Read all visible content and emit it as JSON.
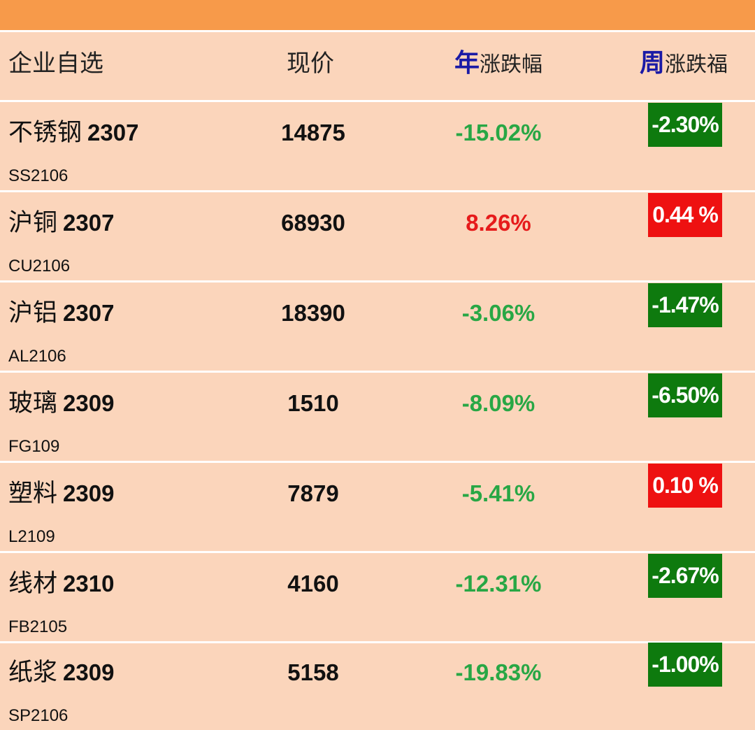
{
  "header": {
    "name_label": "企业自选",
    "price_label": "现价",
    "year_accent": "年",
    "year_suffix": "涨跌幅",
    "week_accent": "周",
    "week_suffix": "涨跌福"
  },
  "colors": {
    "background": "#fbd5bb",
    "top_bar": "#f79a4a",
    "accent_blue": "#1a1aa6",
    "gain_red": "#e61b1b",
    "loss_green": "#28a745",
    "loss_badge_green": "#0e7a0e",
    "gain_badge_red": "#ee1111"
  },
  "rows": [
    {
      "name": "不锈钢",
      "contract": "2307",
      "code": "SS2106",
      "price": "14875",
      "year_change": "-15.02%",
      "year_dir": "down",
      "week_change": "-2.30%",
      "week_dir": "down"
    },
    {
      "name": "沪铜",
      "contract": "2307",
      "code": "CU2106",
      "price": "68930",
      "year_change": "8.26%",
      "year_dir": "up",
      "week_change": "0.44 %",
      "week_dir": "up"
    },
    {
      "name": "沪铝",
      "contract": "2307",
      "code": "AL2106",
      "price": "18390",
      "year_change": "-3.06%",
      "year_dir": "down",
      "week_change": "-1.47%",
      "week_dir": "down"
    },
    {
      "name": "玻璃",
      "contract": "2309",
      "code": "FG109",
      "price": "1510",
      "year_change": "-8.09%",
      "year_dir": "down",
      "week_change": "-6.50%",
      "week_dir": "down"
    },
    {
      "name": "塑料",
      "contract": "2309",
      "code": "L2109",
      "price": "7879",
      "year_change": "-5.41%",
      "year_dir": "down",
      "week_change": "0.10 %",
      "week_dir": "up"
    },
    {
      "name": "线材",
      "contract": "2310",
      "code": "FB2105",
      "price": "4160",
      "year_change": "-12.31%",
      "year_dir": "down",
      "week_change": "-2.67%",
      "week_dir": "down"
    },
    {
      "name": "纸浆",
      "contract": "2309",
      "code": "SP2106",
      "price": "5158",
      "year_change": "-19.83%",
      "year_dir": "down",
      "week_change": "-1.00%",
      "week_dir": "down"
    }
  ]
}
